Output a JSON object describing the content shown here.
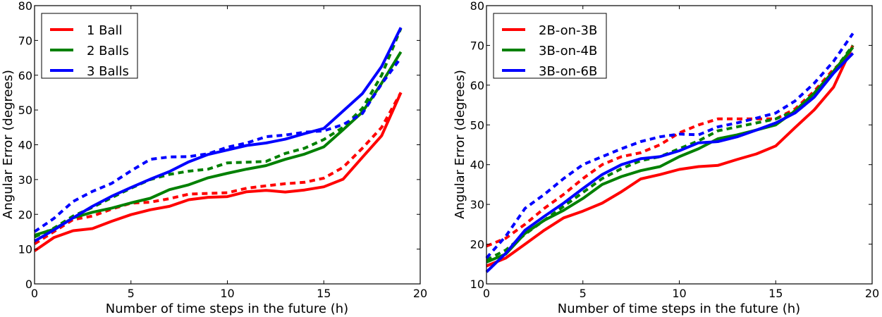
{
  "chart_data": [
    {
      "type": "line",
      "title": "",
      "xlabel": "Number of time steps in the future (h)",
      "ylabel": "Angular Error (degrees)",
      "xlim": [
        0,
        20
      ],
      "ylim": [
        0,
        80
      ],
      "xticks": [
        0,
        5,
        10,
        15,
        20
      ],
      "yticks": [
        0,
        10,
        20,
        30,
        40,
        50,
        60,
        70,
        80
      ],
      "grid": false,
      "legend_position": "top-left",
      "x": [
        0,
        1,
        2,
        3,
        4,
        5,
        6,
        7,
        8,
        9,
        10,
        11,
        12,
        13,
        14,
        15,
        16,
        17,
        18,
        19
      ],
      "series": [
        {
          "name": "1 Ball",
          "legend": true,
          "color": "#ff0000",
          "style": "solid",
          "values": [
            9.5,
            13.3,
            15.3,
            15.9,
            18,
            19.9,
            21.3,
            22.3,
            24.2,
            24.9,
            25.1,
            26.5,
            26.9,
            26.4,
            27,
            27.9,
            30.1,
            36.4,
            42.6,
            55
          ]
        },
        {
          "name": "1 Ball (dashed)",
          "legend": false,
          "color": "#ff0000",
          "style": "dashed",
          "values": [
            11.5,
            15,
            18.5,
            19.5,
            21.5,
            23.2,
            23.5,
            24.5,
            25.8,
            26,
            26.2,
            27.5,
            28.2,
            28.8,
            29.2,
            30.4,
            33.5,
            39,
            45,
            55
          ]
        },
        {
          "name": "2 Balls",
          "legend": true,
          "color": "#008000",
          "style": "solid",
          "values": [
            14,
            15.7,
            19,
            20.6,
            21.8,
            23.3,
            24.6,
            27.1,
            28.5,
            30.5,
            31.8,
            33,
            34,
            35.8,
            37.3,
            39.4,
            44.3,
            49.4,
            57.7,
            66.7
          ]
        },
        {
          "name": "2 Balls (dashed)",
          "legend": false,
          "color": "#008000",
          "style": "dashed",
          "values": [
            13.5,
            16,
            19.5,
            22,
            24.8,
            27.5,
            30,
            31.5,
            32.4,
            33,
            34.8,
            35,
            35.2,
            37.5,
            39,
            41.5,
            45,
            50.5,
            60,
            73.5
          ]
        },
        {
          "name": "3 Balls",
          "legend": true,
          "color": "#0000ff",
          "style": "solid",
          "values": [
            12.3,
            15.5,
            19,
            22.3,
            25.2,
            27.7,
            30.1,
            32.3,
            35.1,
            37.2,
            38.5,
            39.8,
            40.5,
            41.6,
            43.2,
            44.7,
            49.7,
            54.7,
            62.5,
            73.7
          ]
        },
        {
          "name": "3 Balls (dashed)",
          "legend": false,
          "color": "#0000ff",
          "style": "dashed",
          "values": [
            15,
            18.8,
            23.7,
            26.6,
            28.9,
            32.5,
            35.8,
            36.5,
            36.6,
            37.4,
            39.3,
            40.5,
            42.3,
            42.8,
            43.6,
            44,
            45.8,
            49,
            57.5,
            65
          ]
        }
      ]
    },
    {
      "type": "line",
      "title": "",
      "xlabel": "Number of time steps in the future (h)",
      "ylabel": "Angular Error (degrees)",
      "xlim": [
        0,
        20
      ],
      "ylim": [
        10,
        80
      ],
      "xticks": [
        0,
        5,
        10,
        15,
        20
      ],
      "yticks": [
        10,
        20,
        30,
        40,
        50,
        60,
        70,
        80
      ],
      "grid": false,
      "legend_position": "top-left",
      "x": [
        0,
        1,
        2,
        3,
        4,
        5,
        6,
        7,
        8,
        9,
        10,
        11,
        12,
        13,
        14,
        15,
        16,
        17,
        18,
        19
      ],
      "series": [
        {
          "name": "2B-on-3B",
          "legend": true,
          "color": "#ff0000",
          "style": "solid",
          "values": [
            14.5,
            16.5,
            20,
            23.5,
            26.6,
            28.3,
            30.3,
            33.2,
            36.4,
            37.5,
            38.8,
            39.5,
            39.8,
            41.3,
            42.7,
            44.7,
            49.3,
            53.8,
            59.5,
            70
          ]
        },
        {
          "name": "2B-on-3B (dashed)",
          "legend": false,
          "color": "#ff0000",
          "style": "dashed",
          "values": [
            19.5,
            21.5,
            25,
            29,
            32.5,
            36.5,
            40,
            42,
            43,
            45,
            48,
            50,
            51.5,
            51.5,
            51.5,
            51.5,
            54,
            58.5,
            64,
            68
          ]
        },
        {
          "name": "3B-on-4B",
          "legend": true,
          "color": "#008000",
          "style": "solid",
          "values": [
            15.5,
            17.5,
            22.7,
            26,
            28.5,
            31.5,
            35,
            37,
            38.5,
            39.5,
            42,
            44,
            46.5,
            47.5,
            48.7,
            50,
            53.5,
            58,
            63.5,
            69.5
          ]
        },
        {
          "name": "3B-on-4B (dashed)",
          "legend": false,
          "color": "#008000",
          "style": "dashed",
          "values": [
            16,
            18.5,
            22.5,
            26,
            29.5,
            33,
            36.5,
            39,
            41,
            42,
            44,
            46,
            48.5,
            49.5,
            50.5,
            51.5,
            53.5,
            58,
            63.5,
            70
          ]
        },
        {
          "name": "3B-on-6B",
          "legend": true,
          "color": "#0000ff",
          "style": "solid",
          "values": [
            13,
            17.7,
            23.5,
            27,
            30.3,
            34,
            37.5,
            40,
            41.5,
            42,
            43.5,
            45.5,
            45.8,
            47,
            48.7,
            50.5,
            53,
            57,
            63,
            68
          ]
        },
        {
          "name": "3B-on-6B (dashed)",
          "legend": false,
          "color": "#0000ff",
          "style": "dashed",
          "values": [
            16.5,
            22,
            29,
            32.5,
            36.5,
            40,
            42,
            44,
            45.8,
            47,
            47.7,
            47.5,
            49.5,
            50.5,
            51.7,
            53,
            56,
            60.5,
            66,
            73
          ]
        }
      ]
    }
  ]
}
